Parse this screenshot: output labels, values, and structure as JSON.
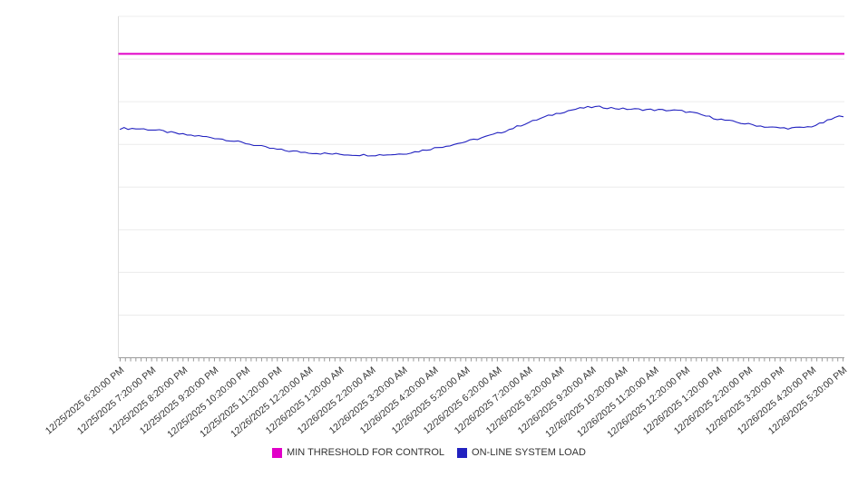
{
  "chart_data": {
    "type": "line",
    "title": "",
    "xlabel": "",
    "ylabel": "",
    "ylim": [
      0,
      100
    ],
    "y_axis_labels_visible": false,
    "grid": "horizontal",
    "grid_rows": 8,
    "legend_position": "bottom-center",
    "x_tick_interval_minutes": 10,
    "categories": [
      "12/25/2025 6:20:00 PM",
      "12/25/2025 7:20:00 PM",
      "12/25/2025 8:20:00 PM",
      "12/25/2025 9:20:00 PM",
      "12/25/2025 10:20:00 PM",
      "12/25/2025 11:20:00 PM",
      "12/26/2025 12:20:00 AM",
      "12/26/2025 1:20:00 AM",
      "12/26/2025 2:20:00 AM",
      "12/26/2025 3:20:00 AM",
      "12/26/2025 4:20:00 AM",
      "12/26/2025 5:20:00 AM",
      "12/26/2025 6:20:00 AM",
      "12/26/2025 7:20:00 AM",
      "12/26/2025 8:20:00 AM",
      "12/26/2025 9:20:00 AM",
      "12/26/2025 10:20:00 AM",
      "12/26/2025 11:20:00 AM",
      "12/26/2025 12:20:00 PM",
      "12/26/2025 1:20:00 PM",
      "12/26/2025 2:20:00 PM",
      "12/26/2025 3:20:00 PM",
      "12/26/2025 4:20:00 PM",
      "12/26/2025 5:20:00 PM"
    ],
    "series": [
      {
        "name": "MIN THRESHOLD FOR CONTROL",
        "style": "horizontal-threshold-line",
        "color": "#e100c8",
        "value": 89
      },
      {
        "name": "ON-LINE SYSTEM LOAD",
        "style": "line",
        "color": "#2222c0",
        "values": [
          67.2,
          66.8,
          65.4,
          64.4,
          62.8,
          61.0,
          60.1,
          59.6,
          59.4,
          59.8,
          61.4,
          63.3,
          65.7,
          68.9,
          71.8,
          73.4,
          72.9,
          72.6,
          72.1,
          70.0,
          68.4,
          67.3,
          67.8,
          70.9
        ]
      }
    ]
  },
  "colors": {
    "gridline": "#ececec",
    "x_axis": "#9a9a9a",
    "y_axis": "#dcdcdc",
    "tick": "#999999",
    "label_text": "#333333"
  }
}
